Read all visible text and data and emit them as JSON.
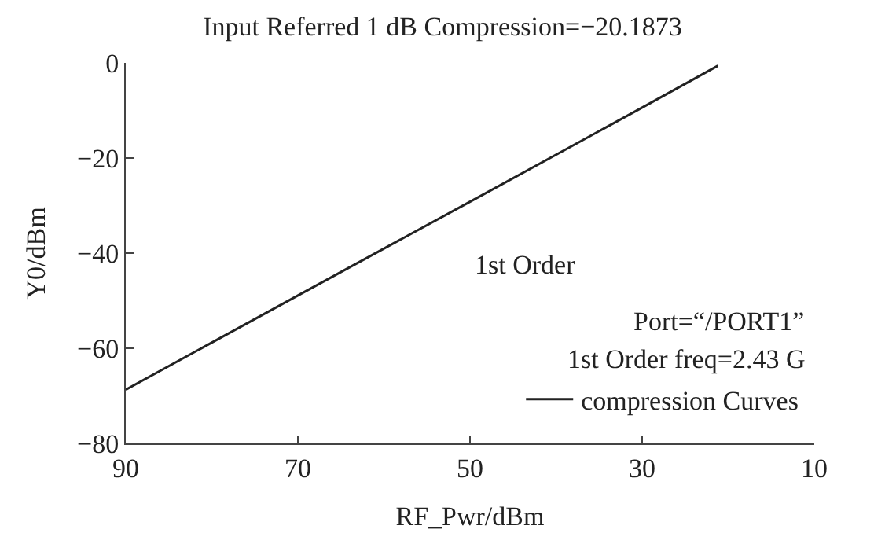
{
  "chart_data": {
    "type": "line",
    "title": "Input Referred 1 dB Compression=−20.1873",
    "xlabel": "RF_Pwr/dBm",
    "ylabel": "Y0/dBm",
    "x": [
      90,
      70,
      50,
      30,
      21.2
    ],
    "series": [
      {
        "name": "compression Curves",
        "color": "#222222",
        "values": [
          -68.7,
          -48.9,
          -29.2,
          -9.4,
          -0.6
        ]
      }
    ],
    "xlim": [
      90,
      10
    ],
    "xticks": [
      90,
      70,
      50,
      30,
      10
    ],
    "ylim": [
      -80,
      0
    ],
    "yticks": [
      -80,
      -60,
      -40,
      -20,
      0
    ],
    "annotations": [
      "1st Order",
      "Port=“/PORT1”",
      "1st Order freq=2.43 G"
    ],
    "legend": "bottom right",
    "marker": "none",
    "line_style": "solid"
  }
}
